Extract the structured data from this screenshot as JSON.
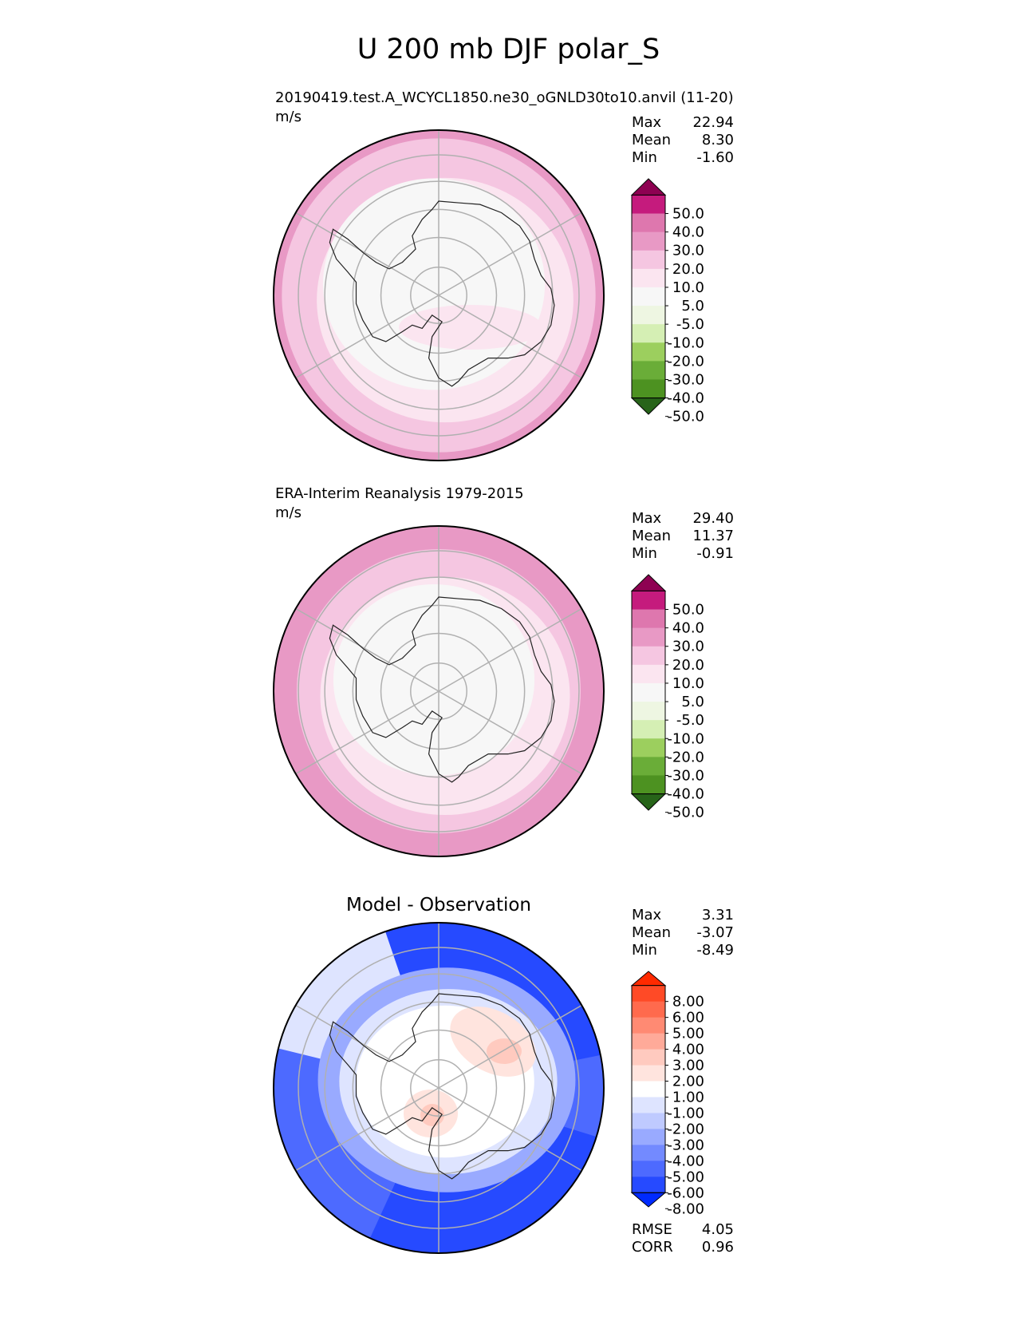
{
  "title": "U 200 mb DJF polar_S",
  "chart_data": [
    {
      "type": "heatmap",
      "projection": "south-polar-stereographic",
      "name": "test",
      "title": "20190419.test.A_WCYCL1850.ne30_oGNLD30to10.anvil (11-20)",
      "units": "m/s",
      "stats": [
        {
          "label": "Max",
          "value": "22.94"
        },
        {
          "label": "Mean",
          "value": "8.30"
        },
        {
          "label": "Min",
          "value": "-1.60"
        }
      ],
      "colorbar": {
        "levels": [
          "50.0",
          "40.0",
          "30.0",
          "20.0",
          "10.0",
          "5.0",
          "-5.0",
          "-10.0",
          "-20.0",
          "-30.0",
          "-40.0",
          "-50.0"
        ],
        "colors": [
          "#8e0152",
          "#c51b7d",
          "#de77ae",
          "#e899c5",
          "#f5c6e1",
          "#fbe5f0",
          "#f7f7f7",
          "#eef6e2",
          "#d5efb4",
          "#9ccf5e",
          "#6aad38",
          "#4d9221",
          "#276419"
        ]
      },
      "regions": [
        {
          "label": "outer",
          "color": "#e899c5"
        },
        {
          "label": "ring",
          "color": "#f5c6e1"
        },
        {
          "label": "inner",
          "color": "#fbe5f0"
        },
        {
          "label": "core",
          "color": "#f7f7f7"
        }
      ]
    },
    {
      "type": "heatmap",
      "projection": "south-polar-stereographic",
      "name": "reference",
      "title": "ERA-Interim Reanalysis 1979-2015",
      "units": "m/s",
      "stats": [
        {
          "label": "Max",
          "value": "29.40"
        },
        {
          "label": "Mean",
          "value": "11.37"
        },
        {
          "label": "Min",
          "value": "-0.91"
        }
      ],
      "colorbar": {
        "levels": [
          "50.0",
          "40.0",
          "30.0",
          "20.0",
          "10.0",
          "5.0",
          "-5.0",
          "-10.0",
          "-20.0",
          "-30.0",
          "-40.0",
          "-50.0"
        ],
        "colors": [
          "#8e0152",
          "#c51b7d",
          "#de77ae",
          "#e899c5",
          "#f5c6e1",
          "#fbe5f0",
          "#f7f7f7",
          "#eef6e2",
          "#d5efb4",
          "#9ccf5e",
          "#6aad38",
          "#4d9221",
          "#276419"
        ]
      },
      "regions": [
        {
          "label": "outer",
          "color": "#e899c5"
        },
        {
          "label": "ring",
          "color": "#f5c6e1"
        },
        {
          "label": "inner",
          "color": "#fbe5f0"
        },
        {
          "label": "core",
          "color": "#f7f7f7"
        }
      ]
    },
    {
      "type": "heatmap",
      "projection": "south-polar-stereographic",
      "name": "diff",
      "title": "Model - Observation",
      "units": "",
      "stats": [
        {
          "label": "Max",
          "value": "3.31"
        },
        {
          "label": "Mean",
          "value": "-3.07"
        },
        {
          "label": "Min",
          "value": "-8.49"
        }
      ],
      "bottom_stats": [
        {
          "label": "RMSE",
          "value": "4.05"
        },
        {
          "label": "CORR",
          "value": "0.96"
        }
      ],
      "colorbar": {
        "levels": [
          "8.00",
          "6.00",
          "5.00",
          "4.00",
          "3.00",
          "2.00",
          "1.00",
          "-1.00",
          "-2.00",
          "-3.00",
          "-4.00",
          "-5.00",
          "-6.00",
          "-8.00"
        ],
        "colors": [
          "#ff2a00",
          "#ff4a26",
          "#ff6a4d",
          "#ff8a73",
          "#ffaa99",
          "#ffcabf",
          "#ffe4de",
          "#ffffff",
          "#dee4ff",
          "#bfcaff",
          "#99aaff",
          "#738aff",
          "#4d6aff",
          "#264aff",
          "#002aff"
        ]
      },
      "regions": [
        {
          "label": "outer",
          "color": "#4d6aff"
        },
        {
          "label": "ring",
          "color": "#99aaff"
        },
        {
          "label": "inner",
          "color": "#dee4ff"
        },
        {
          "label": "core",
          "color": "#ffffff"
        }
      ]
    }
  ]
}
